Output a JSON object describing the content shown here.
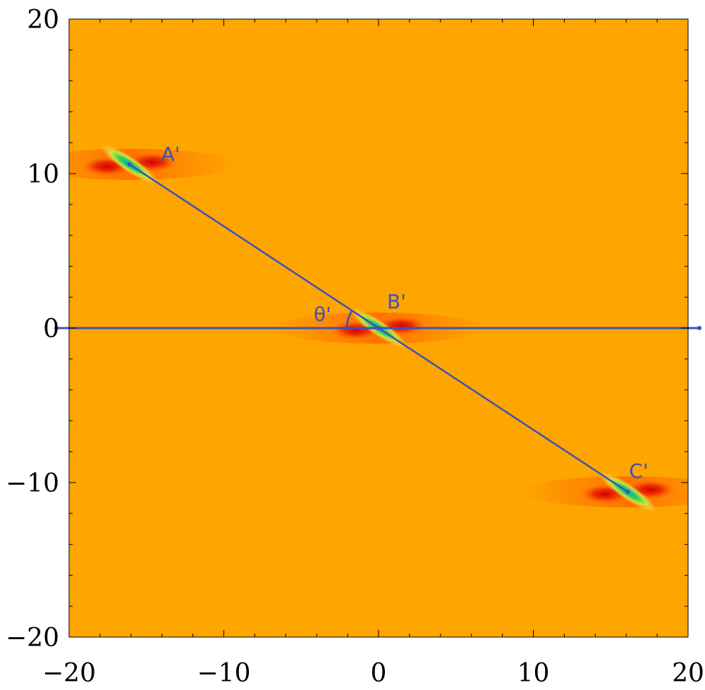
{
  "chart_data": {
    "type": "heatmap",
    "title": "",
    "xlabel": "",
    "ylabel": "",
    "xlim": [
      -20,
      20
    ],
    "ylim": [
      -20,
      20
    ],
    "x_ticks": [
      -20,
      -10,
      0,
      10,
      20
    ],
    "y_ticks": [
      -20,
      -10,
      0,
      10,
      20
    ],
    "x_tick_labels": [
      "−20",
      "−10",
      "0",
      "10",
      "20"
    ],
    "y_tick_labels": [
      "−20",
      "−10",
      "0",
      "10",
      "20"
    ],
    "grid": false,
    "background_color": "#FFA500",
    "line_color": "#4050B8",
    "points": [
      {
        "label": "A'",
        "x": -16.1,
        "y": 10.6
      },
      {
        "label": "B'",
        "x": 0.0,
        "y": 0.0
      },
      {
        "label": "C'",
        "x": 16.1,
        "y": -10.6
      }
    ],
    "horizontal_line_y": 0,
    "angle_label": "θ'"
  }
}
